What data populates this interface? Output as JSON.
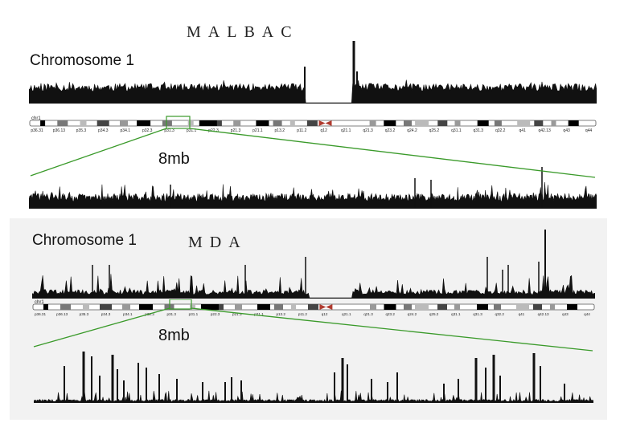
{
  "panels": {
    "malbac": {
      "method": "MALBAC",
      "chromosome_label": "Chromosome 1",
      "zoom_label": "8mb"
    },
    "mda": {
      "method": "MDA",
      "chromosome_label": "Chromosome 1",
      "zoom_label": "8mb"
    }
  },
  "ideogram": {
    "name": "chr1",
    "bands": [
      "p36.31",
      "p36.13",
      "p35.3",
      "p34.3",
      "p34.1",
      "p32.3",
      "p31.3",
      "p31.1",
      "p22.3",
      "p21.3",
      "p21.1",
      "p13.2",
      "p11.2",
      "q12",
      "q21.1",
      "q21.3",
      "q23.2",
      "q24.2",
      "q25.2",
      "q31.1",
      "q31.3",
      "q32.2",
      "q41",
      "q42.13",
      "q43",
      "q44"
    ]
  },
  "colors": {
    "trace": "#111111",
    "zoom_lines": "#3a9a2a",
    "mda_background": "#f2f2f2",
    "centromere": "#b03a2e"
  }
}
